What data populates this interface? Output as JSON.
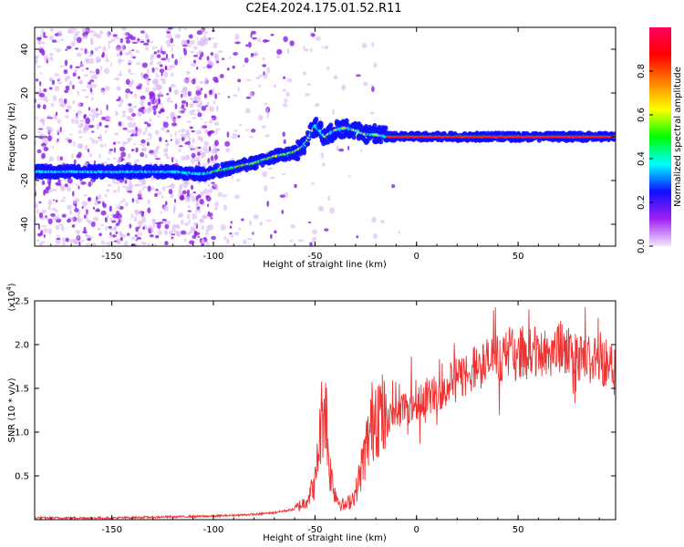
{
  "title": "C2E4.2024.175.01.52.R11",
  "chart_data": [
    {
      "type": "heatmap",
      "title": "C2E4.2024.175.01.52.R11",
      "xlabel": "Height of straight line (km)",
      "ylabel": "Frequency (Hz)",
      "xlim": [
        -188,
        98
      ],
      "ylim": [
        -50,
        50
      ],
      "x_ticks": [
        -150,
        -100,
        -50,
        0,
        50
      ],
      "y_ticks": [
        -40,
        -20,
        0,
        20,
        40
      ],
      "ridge": {
        "x": [
          -188,
          -160,
          -140,
          -120,
          -105,
          -100,
          -90,
          -80,
          -70,
          -60,
          -55,
          -50,
          -45,
          -40,
          -35,
          -30,
          -25,
          -20,
          -15,
          0,
          98
        ],
        "y": [
          -16,
          -16,
          -16,
          -16,
          -17,
          -16,
          -14,
          -12,
          -9,
          -7,
          -4,
          5,
          0,
          3,
          4,
          3,
          1,
          1,
          0,
          0,
          0
        ]
      },
      "colorbar": {
        "label": "Normalized spectral amplitude",
        "ticks": [
          0.0,
          0.2,
          0.4,
          0.6,
          0.8
        ],
        "range": [
          0,
          1
        ],
        "colors": [
          "#f2e6ff",
          "#a020f0",
          "#1010ff",
          "#00ffff",
          "#00ff00",
          "#ffff00",
          "#ff8000",
          "#ff0000",
          "#ff0060"
        ]
      }
    },
    {
      "type": "line",
      "xlabel": "Height of straight line (km)",
      "ylabel": "SNR (10 * v/v)",
      "y_multiplier": "(x10",
      "y_multiplier_exp": "4",
      "xlim": [
        -188,
        98
      ],
      "ylim": [
        0,
        2.5
      ],
      "x_ticks": [
        -150,
        -100,
        -50,
        0,
        50
      ],
      "y_ticks": [
        0.5,
        1.0,
        1.5,
        2.0,
        2.5
      ],
      "color": "#ee3333",
      "envelope_x": [
        -188,
        -150,
        -100,
        -80,
        -70,
        -60,
        -55,
        -50,
        -47,
        -45,
        -43,
        -40,
        -38,
        -35,
        -30,
        -25,
        -20,
        -15,
        -10,
        -5,
        0,
        10,
        20,
        30,
        40,
        50,
        60,
        70,
        80,
        90,
        98
      ],
      "envelope_y": [
        0.02,
        0.02,
        0.04,
        0.06,
        0.08,
        0.12,
        0.2,
        0.4,
        1.1,
        1.4,
        0.6,
        0.3,
        0.2,
        0.15,
        0.3,
        0.8,
        1.3,
        1.1,
        1.25,
        1.3,
        1.35,
        1.45,
        1.6,
        1.75,
        1.85,
        1.9,
        1.9,
        1.95,
        1.85,
        1.8,
        1.8
      ]
    }
  ]
}
